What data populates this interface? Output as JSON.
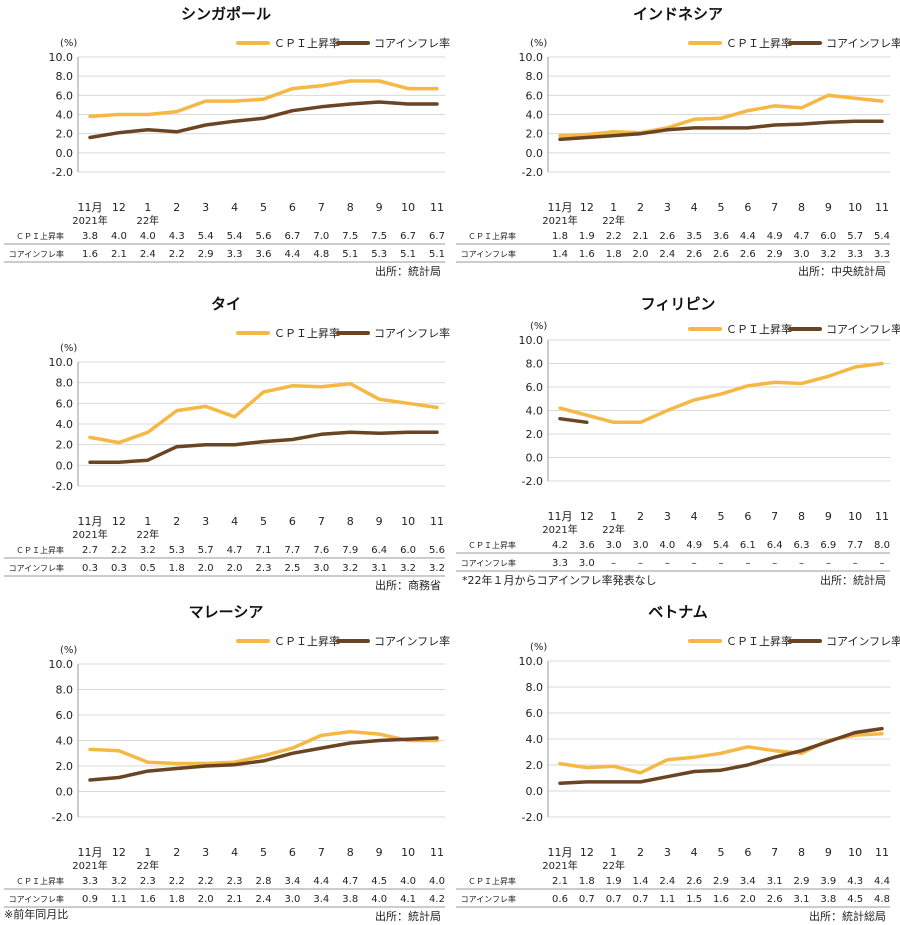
{
  "footer_note": "※前年同月比",
  "chart_data": [
    {
      "type": "line",
      "title": "シンガポール",
      "ylabel": "(%)",
      "ylim": [
        -2.0,
        10.0
      ],
      "yticks": [
        "10.0",
        "8.0",
        "6.0",
        "4.0",
        "2.0",
        "0.0",
        "-2.0"
      ],
      "categories": [
        "11月",
        "12",
        "1",
        "2",
        "3",
        "4",
        "5",
        "6",
        "7",
        "8",
        "9",
        "10",
        "11"
      ],
      "year_labels": [
        "2021年",
        "22年"
      ],
      "series": [
        {
          "name": "ＣＰＩ上昇率",
          "row_label": "ＣＰＩ上昇率",
          "color": "#F6B845",
          "values": [
            3.8,
            4.0,
            4.0,
            4.3,
            5.4,
            5.4,
            5.6,
            6.7,
            7.0,
            7.5,
            7.5,
            6.7,
            6.7
          ],
          "display": [
            "3.8",
            "4.0",
            "4.0",
            "4.3",
            "5.4",
            "5.4",
            "5.6",
            "6.7",
            "7.0",
            "7.5",
            "7.5",
            "6.7",
            "6.7"
          ]
        },
        {
          "name": "コアインフレ率",
          "row_label": "コアインフレ率",
          "color": "#6B4423",
          "values": [
            1.6,
            2.1,
            2.4,
            2.2,
            2.9,
            3.3,
            3.6,
            4.4,
            4.8,
            5.1,
            5.3,
            5.1,
            5.1
          ],
          "display": [
            "1.6",
            "2.1",
            "2.4",
            "2.2",
            "2.9",
            "3.3",
            "3.6",
            "4.4",
            "4.8",
            "5.1",
            "5.3",
            "5.1",
            "5.1"
          ]
        }
      ],
      "source": "出所：統計局"
    },
    {
      "type": "line",
      "title": "インドネシア",
      "ylabel": "(%)",
      "ylim": [
        -2.0,
        10.0
      ],
      "yticks": [
        "10.0",
        "8.0",
        "6.0",
        "4.0",
        "2.0",
        "0.0",
        "-2.0"
      ],
      "categories": [
        "11月",
        "12",
        "1",
        "2",
        "3",
        "4",
        "5",
        "6",
        "7",
        "8",
        "9",
        "10",
        "11"
      ],
      "year_labels": [
        "2021年",
        "22年"
      ],
      "series": [
        {
          "name": "ＣＰＩ上昇率",
          "row_label": "ＣＰＩ上昇率",
          "color": "#F6B845",
          "values": [
            1.8,
            1.9,
            2.2,
            2.1,
            2.6,
            3.5,
            3.6,
            4.4,
            4.9,
            4.7,
            6.0,
            5.7,
            5.4
          ],
          "display": [
            "1.8",
            "1.9",
            "2.2",
            "2.1",
            "2.6",
            "3.5",
            "3.6",
            "4.4",
            "4.9",
            "4.7",
            "6.0",
            "5.7",
            "5.4"
          ]
        },
        {
          "name": "コアインフレ率",
          "row_label": "コアインフレ率",
          "color": "#6B4423",
          "values": [
            1.4,
            1.6,
            1.8,
            2.0,
            2.4,
            2.6,
            2.6,
            2.6,
            2.9,
            3.0,
            3.2,
            3.3,
            3.3
          ],
          "display": [
            "1.4",
            "1.6",
            "1.8",
            "2.0",
            "2.4",
            "2.6",
            "2.6",
            "2.6",
            "2.9",
            "3.0",
            "3.2",
            "3.3",
            "3.3"
          ]
        }
      ],
      "source": "出所：中央統計局"
    },
    {
      "type": "line",
      "title": "タイ",
      "ylabel": "(%)",
      "ylim": [
        -2.0,
        10.0
      ],
      "yticks": [
        "10.0",
        "8.0",
        "6.0",
        "4.0",
        "2.0",
        "0.0",
        "-2.0"
      ],
      "categories": [
        "11月",
        "12",
        "1",
        "2",
        "3",
        "4",
        "5",
        "6",
        "7",
        "8",
        "9",
        "10",
        "11"
      ],
      "year_labels": [
        "2021年",
        "22年"
      ],
      "series": [
        {
          "name": "ＣＰＩ上昇率",
          "row_label": "ＣＰＩ上昇率",
          "color": "#F6B845",
          "values": [
            2.7,
            2.2,
            3.2,
            5.3,
            5.7,
            4.7,
            7.1,
            7.7,
            7.6,
            7.9,
            6.4,
            6.0,
            5.6
          ],
          "display": [
            "2.7",
            "2.2",
            "3.2",
            "5.3",
            "5.7",
            "4.7",
            "7.1",
            "7.7",
            "7.6",
            "7.9",
            "6.4",
            "6.0",
            "5.6"
          ]
        },
        {
          "name": "コアインフレ率",
          "row_label": "コアインフレ率",
          "color": "#6B4423",
          "values": [
            0.3,
            0.3,
            0.5,
            1.8,
            2.0,
            2.0,
            2.3,
            2.5,
            3.0,
            3.2,
            3.1,
            3.2,
            3.2
          ],
          "display": [
            "0.3",
            "0.3",
            "0.5",
            "1.8",
            "2.0",
            "2.0",
            "2.3",
            "2.5",
            "3.0",
            "3.2",
            "3.1",
            "3.2",
            "3.2"
          ]
        }
      ],
      "source": "出所：商務省"
    },
    {
      "type": "line",
      "title": "フィリピン",
      "ylabel": "(%)",
      "ylim": [
        -2.0,
        10.0
      ],
      "yticks": [
        "10.0",
        "8.0",
        "6.0",
        "4.0",
        "2.0",
        "0.0",
        "-2.0"
      ],
      "categories": [
        "11月",
        "12",
        "1",
        "2",
        "3",
        "4",
        "5",
        "6",
        "7",
        "8",
        "9",
        "10",
        "11"
      ],
      "year_labels": [
        "2021年",
        "22年"
      ],
      "series": [
        {
          "name": "ＣＰＩ上昇率",
          "row_label": "ＣＰＩ上昇率",
          "color": "#F6B845",
          "values": [
            4.2,
            3.6,
            3.0,
            3.0,
            4.0,
            4.9,
            5.4,
            6.1,
            6.4,
            6.3,
            6.9,
            7.7,
            8.0
          ],
          "display": [
            "4.2",
            "3.6",
            "3.0",
            "3.0",
            "4.0",
            "4.9",
            "5.4",
            "6.1",
            "6.4",
            "6.3",
            "6.9",
            "7.7",
            "8.0"
          ]
        },
        {
          "name": "コアインフレ率",
          "row_label": "コアインフレ率",
          "color": "#6B4423",
          "values": [
            3.3,
            3.0,
            null,
            null,
            null,
            null,
            null,
            null,
            null,
            null,
            null,
            null,
            null
          ],
          "display": [
            "3.3",
            "3.0",
            "–",
            "–",
            "–",
            "–",
            "–",
            "–",
            "–",
            "–",
            "–",
            "–",
            "–"
          ]
        }
      ],
      "note": "*22年１月からコアインフレ率発表なし",
      "source": "出所：統計局"
    },
    {
      "type": "line",
      "title": "マレーシア",
      "ylabel": "(%)",
      "ylim": [
        -2.0,
        10.0
      ],
      "yticks": [
        "10.0",
        "8.0",
        "6.0",
        "4.0",
        "2.0",
        "0.0",
        "-2.0"
      ],
      "categories": [
        "11月",
        "12",
        "1",
        "2",
        "3",
        "4",
        "5",
        "6",
        "7",
        "8",
        "9",
        "10",
        "11"
      ],
      "year_labels": [
        "2021年",
        "22年"
      ],
      "series": [
        {
          "name": "ＣＰＩ上昇率",
          "row_label": "ＣＰＩ上昇率",
          "color": "#F6B845",
          "values": [
            3.3,
            3.2,
            2.3,
            2.2,
            2.2,
            2.3,
            2.8,
            3.4,
            4.4,
            4.7,
            4.5,
            4.0,
            4.0
          ],
          "display": [
            "3.3",
            "3.2",
            "2.3",
            "2.2",
            "2.2",
            "2.3",
            "2.8",
            "3.4",
            "4.4",
            "4.7",
            "4.5",
            "4.0",
            "4.0"
          ]
        },
        {
          "name": "コアインフレ率",
          "row_label": "コアインフレ率",
          "color": "#6B4423",
          "values": [
            0.9,
            1.1,
            1.6,
            1.8,
            2.0,
            2.1,
            2.4,
            3.0,
            3.4,
            3.8,
            4.0,
            4.1,
            4.2
          ],
          "display": [
            "0.9",
            "1.1",
            "1.6",
            "1.8",
            "2.0",
            "2.1",
            "2.4",
            "3.0",
            "3.4",
            "3.8",
            "4.0",
            "4.1",
            "4.2"
          ]
        }
      ],
      "source": "出所：統計局"
    },
    {
      "type": "line",
      "title": "ベトナム",
      "ylabel": "(%)",
      "ylim": [
        -2.0,
        10.0
      ],
      "yticks": [
        "10.0",
        "8.0",
        "6.0",
        "4.0",
        "2.0",
        "0.0",
        "-2.0"
      ],
      "categories": [
        "11月",
        "12",
        "1",
        "2",
        "3",
        "4",
        "5",
        "6",
        "7",
        "8",
        "9",
        "10",
        "11"
      ],
      "year_labels": [
        "2021年",
        "22年"
      ],
      "series": [
        {
          "name": "ＣＰＩ上昇率",
          "row_label": "ＣＰＩ上昇率",
          "color": "#F6B845",
          "values": [
            2.1,
            1.8,
            1.9,
            1.4,
            2.4,
            2.6,
            2.9,
            3.4,
            3.1,
            2.9,
            3.9,
            4.3,
            4.4
          ],
          "display": [
            "2.1",
            "1.8",
            "1.9",
            "1.4",
            "2.4",
            "2.6",
            "2.9",
            "3.4",
            "3.1",
            "2.9",
            "3.9",
            "4.3",
            "4.4"
          ]
        },
        {
          "name": "コアインフレ率",
          "row_label": "コアインフレ率",
          "color": "#6B4423",
          "values": [
            0.6,
            0.7,
            0.7,
            0.7,
            1.1,
            1.5,
            1.6,
            2.0,
            2.6,
            3.1,
            3.8,
            4.5,
            4.8
          ],
          "display": [
            "0.6",
            "0.7",
            "0.7",
            "0.7",
            "1.1",
            "1.5",
            "1.6",
            "2.0",
            "2.6",
            "3.1",
            "3.8",
            "4.5",
            "4.8"
          ]
        }
      ],
      "source": "出所：統計総局"
    }
  ]
}
